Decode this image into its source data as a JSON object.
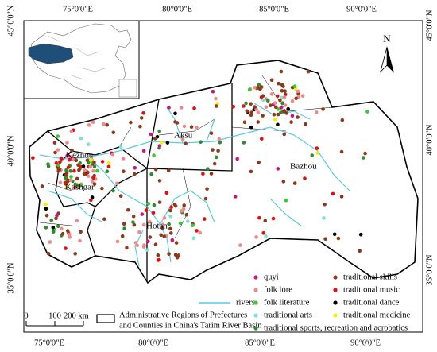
{
  "map": {
    "lon_labels_top": [
      "75°0'0\"E",
      "80°0'0\"E",
      "85°0'0\"E",
      "90°0'0\"E"
    ],
    "lon_labels_bottom": [
      "75°0'0\"E",
      "80°0'0\"E",
      "85°0'0\"E",
      "90°0'0\"E"
    ],
    "lat_labels_left": [
      "45°0'0\"N",
      "40°0'0\"N",
      "35°0'0\"N"
    ],
    "lat_labels_right": [
      "45°0'0\"N",
      "40°0'0\"N",
      "35°0'0\"N"
    ],
    "regions": [
      "Kezhou",
      "Kashgar",
      "Aksu",
      "Bazhou",
      "Hotan"
    ],
    "north": "N",
    "scale_labels": [
      "0",
      "100",
      "200 km"
    ],
    "legend": {
      "rivers": "rivers",
      "boundary": [
        "Administrative Regions of Prefectures",
        "and Counties in China's Tarim River Basin"
      ],
      "items": [
        {
          "name": "quyi",
          "color": "#c8177f"
        },
        {
          "name": "folk lore",
          "color": "#f08a8a"
        },
        {
          "name": "folk literature",
          "color": "#33cc33"
        },
        {
          "name": "traditional arts",
          "color": "#7fe3d2"
        },
        {
          "name": "traditional sports, recreation and acrobatics",
          "color": "#2e8b2e"
        },
        {
          "name": "traditional skills",
          "color": "#8b3a1a"
        },
        {
          "name": "traditional music",
          "color": "#e01010"
        },
        {
          "name": "traditional dance",
          "color": "#000000"
        },
        {
          "name": "traditional medicine",
          "color": "#f2f200"
        }
      ]
    }
  }
}
